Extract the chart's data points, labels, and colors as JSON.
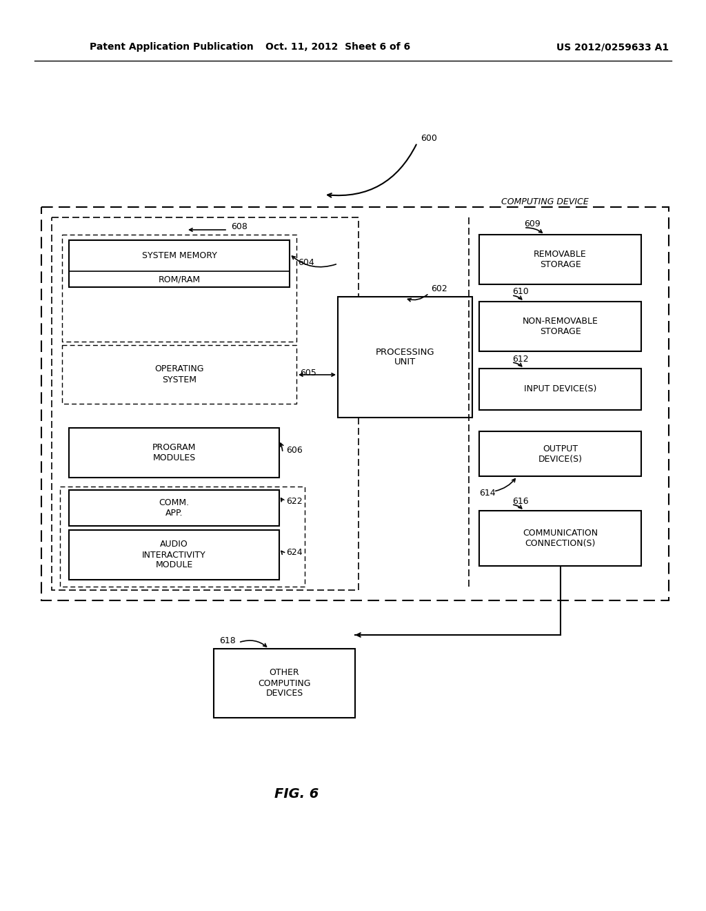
{
  "bg_color": "#ffffff",
  "header_left": "Patent Application Publication",
  "header_mid": "Oct. 11, 2012  Sheet 6 of 6",
  "header_right": "US 2012/0259633 A1",
  "fig_label": "FIG. 6",
  "label_600": "600",
  "label_602": "602",
  "label_604": "604",
  "label_605": "605",
  "label_606": "606",
  "label_608": "608",
  "label_609": "609",
  "label_610": "610",
  "label_612": "612",
  "label_614": "614",
  "label_616": "616",
  "label_618": "618",
  "label_622": "622",
  "label_624": "624",
  "text_computing_device": "COMPUTING DEVICE",
  "text_system_memory": "SYSTEM MEMORY",
  "text_rom_ram": "ROM/RAM",
  "text_operating_system": "OPERATING\nSYSTEM",
  "text_program_modules": "PROGRAM\nMODULES",
  "text_comm_app": "COMM.\nAPP.",
  "text_audio_module": "AUDIO\nINTERACTIVITY\nMODULE",
  "text_processing_unit": "PROCESSING\nUNIT",
  "text_removable_storage": "REMOVABLE\nSTORAGE",
  "text_non_removable_storage": "NON-REMOVABLE\nSTORAGE",
  "text_input_device": "INPUT DEVICE(S)",
  "text_output_device": "OUTPUT\nDEVICE(S)",
  "text_comm_connections": "COMMUNICATION\nCONNECTION(S)",
  "text_other_computing": "OTHER\nCOMPUTING\nDEVICES"
}
